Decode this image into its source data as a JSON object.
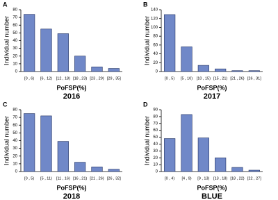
{
  "chart_data": [
    {
      "type": "bar",
      "panel_label": "A",
      "x_label": "PoFSP(%)",
      "subtitle": "2016",
      "y_label": "Individual number",
      "categories": [
        "[0 , 6)",
        "[6 , 12)",
        "[12 , 18)",
        "[18 , 23)",
        "[23 , 29)",
        "[29 , 35]"
      ],
      "values": [
        74,
        55,
        49,
        20,
        6,
        4
      ],
      "color": "#7088c8",
      "ylim": [
        0,
        80
      ],
      "yticks": [
        0,
        10,
        20,
        30,
        40,
        50,
        60,
        70,
        80
      ]
    },
    {
      "type": "bar",
      "panel_label": "B",
      "x_label": "PoFSP(%)",
      "subtitle": "2017",
      "y_label": "Individual number",
      "categories": [
        "[0 , 5)",
        "[5 , 10)",
        "[10 , 15)",
        "[15 , 21)",
        "[21 , 26)",
        "[26 , 31]"
      ],
      "values": [
        129,
        56,
        14,
        6,
        2,
        2
      ],
      "color": "#7088c8",
      "ylim": [
        0,
        140
      ],
      "yticks": [
        0,
        20,
        40,
        60,
        80,
        100,
        120,
        140
      ]
    },
    {
      "type": "bar",
      "panel_label": "C",
      "x_label": "PoFSP(%)",
      "subtitle": "2018",
      "y_label": "Individual number",
      "categories": [
        "[0 , 5)",
        "[5 , 11)",
        "[11 , 16)",
        "[16 , 21)",
        "[21 , 26)",
        "[26 , 32]"
      ],
      "values": [
        75,
        72,
        39,
        12,
        6,
        3
      ],
      "color": "#7088c8",
      "ylim": [
        0,
        80
      ],
      "yticks": [
        0,
        10,
        20,
        30,
        40,
        50,
        60,
        70,
        80
      ]
    },
    {
      "type": "bar",
      "panel_label": "D",
      "x_label": "PoFSP(%)",
      "subtitle": "BLUE",
      "y_label": "Individual number",
      "categories": [
        "[0 , 4)",
        "[4 , 9)",
        "[9 , 13)",
        "[13 , 18)",
        "[18 , 22)",
        "[22 , 27]"
      ],
      "values": [
        48,
        83,
        49,
        20,
        6,
        2
      ],
      "color": "#7088c8",
      "ylim": [
        0,
        90
      ],
      "yticks": [
        0,
        10,
        20,
        30,
        40,
        50,
        60,
        70,
        80,
        90
      ]
    }
  ]
}
